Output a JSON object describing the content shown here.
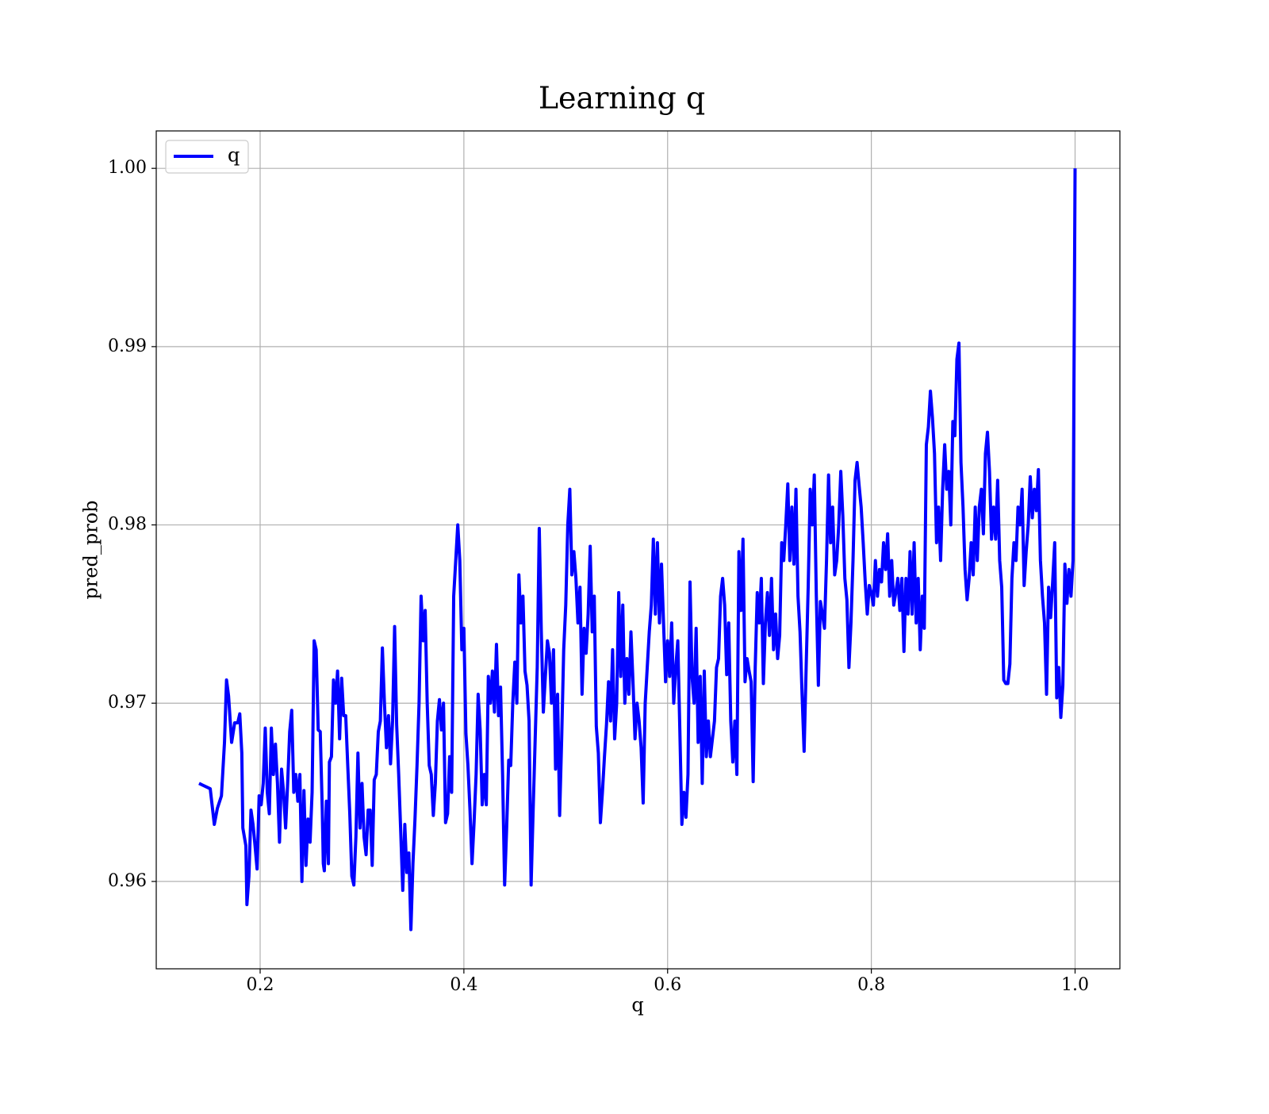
{
  "chart_data": {
    "type": "line",
    "title": "Learning q",
    "xlabel": "q",
    "ylabel": "pred_prob",
    "xlim": [
      0.098,
      1.044
    ],
    "ylim": [
      0.9551,
      1.0021
    ],
    "xticks": [
      0.2,
      0.4,
      0.6,
      0.8,
      {
        "value": 1.0,
        "label": "1.0"
      }
    ],
    "yticks": [
      0.96,
      0.97,
      0.98,
      0.99,
      {
        "value": 1.0,
        "label": "1.00"
      }
    ],
    "grid": true,
    "legend": "upper left",
    "x": [
      0.14,
      0.151,
      0.155,
      0.158,
      0.162,
      0.165,
      0.167,
      0.169,
      0.172,
      0.175,
      0.178,
      0.18,
      0.182,
      0.183,
      0.186,
      0.187,
      0.189,
      0.191,
      0.193,
      0.195,
      0.197,
      0.199,
      0.201,
      0.203,
      0.205,
      0.207,
      0.209,
      0.211,
      0.213,
      0.215,
      0.217,
      0.219,
      0.221,
      0.223,
      0.225,
      0.227,
      0.229,
      0.231,
      0.233,
      0.235,
      0.237,
      0.239,
      0.241,
      0.243,
      0.245,
      0.247,
      0.249,
      0.251,
      0.253,
      0.255,
      0.257,
      0.259,
      0.261,
      0.262,
      0.263,
      0.265,
      0.267,
      0.268,
      0.27,
      0.272,
      0.274,
      0.276,
      0.278,
      0.28,
      0.282,
      0.284,
      0.286,
      0.288,
      0.29,
      0.292,
      0.294,
      0.296,
      0.298,
      0.3,
      0.302,
      0.304,
      0.306,
      0.308,
      0.31,
      0.312,
      0.314,
      0.316,
      0.318,
      0.32,
      0.322,
      0.324,
      0.326,
      0.328,
      0.33,
      0.332,
      0.334,
      0.336,
      0.338,
      0.34,
      0.342,
      0.344,
      0.346,
      0.348,
      0.35,
      0.352,
      0.354,
      0.356,
      0.358,
      0.36,
      0.362,
      0.364,
      0.366,
      0.368,
      0.37,
      0.372,
      0.374,
      0.376,
      0.378,
      0.38,
      0.382,
      0.384,
      0.386,
      0.388,
      0.39,
      0.392,
      0.394,
      0.396,
      0.398,
      0.4,
      0.402,
      0.404,
      0.406,
      0.408,
      0.41,
      0.412,
      0.414,
      0.416,
      0.418,
      0.42,
      0.422,
      0.424,
      0.426,
      0.428,
      0.43,
      0.432,
      0.434,
      0.436,
      0.438,
      0.44,
      0.442,
      0.444,
      0.446,
      0.448,
      0.45,
      0.452,
      0.454,
      0.456,
      0.458,
      0.46,
      0.462,
      0.464,
      0.466,
      0.468,
      0.47,
      0.472,
      0.474,
      0.476,
      0.478,
      0.48,
      0.482,
      0.484,
      0.486,
      0.488,
      0.49,
      0.492,
      0.494,
      0.496,
      0.498,
      0.5,
      0.502,
      0.504,
      0.506,
      0.508,
      0.51,
      0.512,
      0.514,
      0.516,
      0.518,
      0.52,
      0.522,
      0.524,
      0.526,
      0.528,
      0.53,
      0.532,
      0.534,
      0.536,
      0.538,
      0.54,
      0.542,
      0.544,
      0.546,
      0.548,
      0.55,
      0.552,
      0.554,
      0.556,
      0.558,
      0.56,
      0.562,
      0.564,
      0.566,
      0.568,
      0.57,
      0.572,
      0.574,
      0.576,
      0.578,
      0.58,
      0.582,
      0.584,
      0.586,
      0.588,
      0.59,
      0.592,
      0.594,
      0.596,
      0.598,
      0.6,
      0.602,
      0.604,
      0.606,
      0.608,
      0.61,
      0.612,
      0.614,
      0.616,
      0.618,
      0.62,
      0.622,
      0.624,
      0.626,
      0.628,
      0.63,
      0.632,
      0.634,
      0.636,
      0.638,
      0.64,
      0.642,
      0.644,
      0.646,
      0.648,
      0.65,
      0.652,
      0.654,
      0.656,
      0.658,
      0.66,
      0.662,
      0.664,
      0.666,
      0.668,
      0.67,
      0.672,
      0.674,
      0.676,
      0.678,
      0.68,
      0.682,
      0.684,
      0.686,
      0.688,
      0.69,
      0.692,
      0.694,
      0.696,
      0.698,
      0.7,
      0.702,
      0.704,
      0.706,
      0.708,
      0.71,
      0.712,
      0.714,
      0.716,
      0.718,
      0.72,
      0.722,
      0.724,
      0.726,
      0.728,
      0.73,
      0.732,
      0.734,
      0.736,
      0.738,
      0.74,
      0.742,
      0.744,
      0.746,
      0.748,
      0.75,
      0.752,
      0.754,
      0.756,
      0.758,
      0.76,
      0.762,
      0.764,
      0.766,
      0.768,
      0.77,
      0.772,
      0.774,
      0.776,
      0.778,
      0.78,
      0.782,
      0.784,
      0.786,
      0.788,
      0.79,
      0.792,
      0.794,
      0.796,
      0.798,
      0.8,
      0.802,
      0.804,
      0.806,
      0.808,
      0.81,
      0.812,
      0.814,
      0.816,
      0.818,
      0.82,
      0.822,
      0.824,
      0.826,
      0.828,
      0.83,
      0.832,
      0.834,
      0.836,
      0.838,
      0.84,
      0.842,
      0.844,
      0.846,
      0.848,
      0.85,
      0.852,
      0.854,
      0.856,
      0.858,
      0.86,
      0.862,
      0.864,
      0.866,
      0.868,
      0.87,
      0.872,
      0.874,
      0.876,
      0.878,
      0.88,
      0.882,
      0.884,
      0.886,
      0.888,
      0.89,
      0.892,
      0.894,
      0.896,
      0.898,
      0.9,
      0.902,
      0.904,
      0.906,
      0.908,
      0.91,
      0.912,
      0.914,
      0.916,
      0.918,
      0.92,
      0.922,
      0.924,
      0.926,
      0.928,
      0.93,
      0.932,
      0.934,
      0.936,
      0.938,
      0.94,
      0.942,
      0.944,
      0.946,
      0.948,
      0.95,
      0.952,
      0.954,
      0.956,
      0.958,
      0.96,
      0.962,
      0.964,
      0.966,
      0.968,
      0.97,
      0.972,
      0.974,
      0.976,
      0.978,
      0.98,
      0.982,
      0.984,
      0.986,
      0.988,
      0.99,
      0.992,
      0.994,
      0.996,
      0.998,
      1.0
    ],
    "series": [
      {
        "name": "q",
        "color": "#0000ff",
        "values": [
          0.9655,
          0.9652,
          0.9632,
          0.9641,
          0.9648,
          0.9678,
          0.9713,
          0.9704,
          0.9678,
          0.9689,
          0.9689,
          0.9694,
          0.9672,
          0.963,
          0.962,
          0.9587,
          0.9603,
          0.964,
          0.9632,
          0.962,
          0.9607,
          0.9648,
          0.9643,
          0.9655,
          0.9686,
          0.965,
          0.9638,
          0.9686,
          0.966,
          0.9677,
          0.9655,
          0.9622,
          0.9663,
          0.965,
          0.963,
          0.9655,
          0.9684,
          0.9696,
          0.965,
          0.966,
          0.9645,
          0.966,
          0.96,
          0.9651,
          0.9609,
          0.9635,
          0.9622,
          0.965,
          0.9735,
          0.973,
          0.9685,
          0.9684,
          0.964,
          0.961,
          0.9606,
          0.9645,
          0.961,
          0.9667,
          0.967,
          0.9713,
          0.97,
          0.9718,
          0.968,
          0.9714,
          0.9693,
          0.9693,
          0.9665,
          0.9638,
          0.9603,
          0.9598,
          0.9625,
          0.9672,
          0.963,
          0.9655,
          0.9625,
          0.9615,
          0.964,
          0.964,
          0.9609,
          0.9657,
          0.966,
          0.9684,
          0.969,
          0.9731,
          0.97,
          0.9675,
          0.9693,
          0.9666,
          0.969,
          0.9743,
          0.9688,
          0.966,
          0.9628,
          0.9595,
          0.9632,
          0.9605,
          0.9616,
          0.9573,
          0.961,
          0.9635,
          0.9665,
          0.97,
          0.976,
          0.9735,
          0.9752,
          0.97,
          0.9665,
          0.966,
          0.9637,
          0.9655,
          0.969,
          0.9702,
          0.9685,
          0.97,
          0.9633,
          0.9638,
          0.967,
          0.965,
          0.976,
          0.978,
          0.98,
          0.978,
          0.973,
          0.9742,
          0.9683,
          0.9665,
          0.964,
          0.961,
          0.9633,
          0.966,
          0.9705,
          0.9685,
          0.9643,
          0.966,
          0.9643,
          0.9715,
          0.97,
          0.9718,
          0.9695,
          0.9733,
          0.9693,
          0.9709,
          0.966,
          0.9598,
          0.963,
          0.9668,
          0.9665,
          0.97,
          0.9723,
          0.97,
          0.9772,
          0.9745,
          0.976,
          0.9718,
          0.971,
          0.969,
          0.9598,
          0.964,
          0.968,
          0.972,
          0.9798,
          0.974,
          0.9695,
          0.9715,
          0.9735,
          0.9728,
          0.97,
          0.973,
          0.9663,
          0.9705,
          0.9637,
          0.968,
          0.973,
          0.9755,
          0.98,
          0.982,
          0.9772,
          0.9785,
          0.977,
          0.9745,
          0.9765,
          0.9705,
          0.9742,
          0.9728,
          0.975,
          0.9788,
          0.974,
          0.976,
          0.9687,
          0.9672,
          0.9633,
          0.965,
          0.967,
          0.9688,
          0.9712,
          0.969,
          0.973,
          0.968,
          0.97,
          0.9762,
          0.9715,
          0.9755,
          0.97,
          0.9725,
          0.9705,
          0.974,
          0.9712,
          0.968,
          0.97,
          0.969,
          0.9675,
          0.9644,
          0.97,
          0.972,
          0.974,
          0.9755,
          0.9792,
          0.975,
          0.979,
          0.9745,
          0.9778,
          0.9745,
          0.9712,
          0.9735,
          0.9715,
          0.9745,
          0.97,
          0.972,
          0.9735,
          0.9685,
          0.9632,
          0.965,
          0.9636,
          0.966,
          0.9768,
          0.9715,
          0.97,
          0.9742,
          0.9678,
          0.9715,
          0.9655,
          0.9718,
          0.967,
          0.969,
          0.967,
          0.968,
          0.969,
          0.972,
          0.9725,
          0.976,
          0.977,
          0.9755,
          0.9716,
          0.9745,
          0.969,
          0.9667,
          0.969,
          0.966,
          0.9785,
          0.9752,
          0.9792,
          0.9712,
          0.9725,
          0.9718,
          0.9712,
          0.9656,
          0.972,
          0.9762,
          0.9745,
          0.977,
          0.9711,
          0.9745,
          0.9762,
          0.9738,
          0.977,
          0.973,
          0.975,
          0.9725,
          0.9738,
          0.979,
          0.978,
          0.98,
          0.9823,
          0.978,
          0.981,
          0.9778,
          0.982,
          0.976,
          0.974,
          0.9705,
          0.9673,
          0.972,
          0.9765,
          0.982,
          0.98,
          0.9828,
          0.976,
          0.971,
          0.9757,
          0.975,
          0.9742,
          0.978,
          0.9828,
          0.979,
          0.981,
          0.9772,
          0.978,
          0.98,
          0.983,
          0.9805,
          0.977,
          0.9758,
          0.972,
          0.9745,
          0.978,
          0.9825,
          0.9835,
          0.9822,
          0.981,
          0.979,
          0.9768,
          0.975,
          0.9766,
          0.9762,
          0.9755,
          0.978,
          0.976,
          0.9775,
          0.9768,
          0.979,
          0.9775,
          0.9795,
          0.976,
          0.978,
          0.9755,
          0.9762,
          0.977,
          0.9752,
          0.977,
          0.9729,
          0.977,
          0.975,
          0.9785,
          0.975,
          0.979,
          0.9745,
          0.977,
          0.973,
          0.976,
          0.9742,
          0.9845,
          0.9855,
          0.9875,
          0.986,
          0.984,
          0.979,
          0.981,
          0.978,
          0.982,
          0.9845,
          0.982,
          0.983,
          0.98,
          0.9858,
          0.985,
          0.9893,
          0.9902,
          0.9835,
          0.981,
          0.9775,
          0.9758,
          0.977,
          0.979,
          0.9772,
          0.981,
          0.978,
          0.981,
          0.982,
          0.9795,
          0.984,
          0.9852,
          0.983,
          0.9792,
          0.981,
          0.9792,
          0.9825,
          0.978,
          0.9765,
          0.9713,
          0.9711,
          0.9711,
          0.9722,
          0.977,
          0.979,
          0.978,
          0.981,
          0.98,
          0.982,
          0.9766,
          0.9785,
          0.98,
          0.9827,
          0.9804,
          0.982,
          0.9808,
          0.9831,
          0.978,
          0.976,
          0.9745,
          0.9705,
          0.9765,
          0.9748,
          0.9768,
          0.979,
          0.9703,
          0.972,
          0.9692,
          0.971,
          0.9778,
          0.9756,
          0.9775,
          0.976,
          0.978,
          1.0
        ]
      }
    ]
  }
}
